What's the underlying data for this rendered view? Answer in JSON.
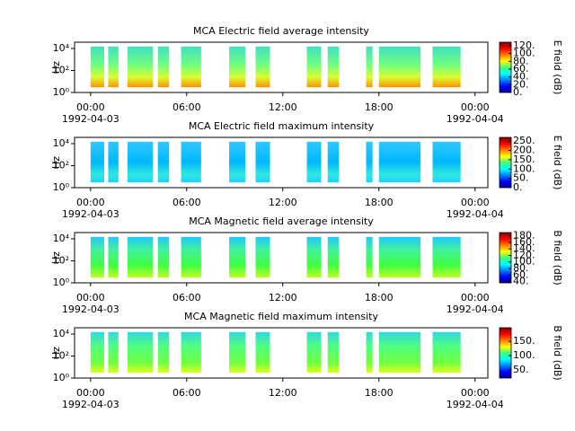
{
  "chart_data": [
    {
      "type": "spectrogram",
      "title": "MCA  Electric field average intensity",
      "ylabel": "Hz",
      "log_y": true,
      "ylim": [
        1,
        37000
      ],
      "yticks": [
        {
          "value": 1,
          "label": "10⁰"
        },
        {
          "value": 100,
          "label": "10²"
        },
        {
          "value": 10000,
          "label": "10⁴"
        }
      ],
      "xlim": [
        -1,
        24.8
      ],
      "xticks": [
        {
          "value": 0,
          "label": "00:00"
        },
        {
          "value": 6,
          "label": "06:00"
        },
        {
          "value": 12,
          "label": "12:00"
        },
        {
          "value": 18,
          "label": "18:00"
        },
        {
          "value": 24,
          "label": "00:00"
        }
      ],
      "date_labels": [
        {
          "value": 0,
          "label": "1992-04-03"
        },
        {
          "value": 24,
          "label": "1992-04-04"
        }
      ],
      "freq_range": [
        3,
        15000
      ],
      "intervals": [
        [
          0,
          0.85
        ],
        [
          1.1,
          1.74
        ],
        [
          2.3,
          3.9
        ],
        [
          4.2,
          4.9
        ],
        [
          5.65,
          6.9
        ],
        [
          8.65,
          9.66
        ],
        [
          10.3,
          11.2
        ],
        [
          13.5,
          14.4
        ],
        [
          14.8,
          15.5
        ],
        [
          17.2,
          17.6
        ],
        [
          18.0,
          20.6
        ],
        [
          21.35,
          23.1
        ]
      ],
      "colorbar": {
        "label": "E field (dB)",
        "lim": [
          0,
          129
        ],
        "ticks": [
          {
            "value": 0,
            "label": "0."
          },
          {
            "value": 20,
            "label": "20."
          },
          {
            "value": 40,
            "label": "40."
          },
          {
            "value": 60,
            "label": "60."
          },
          {
            "value": 80,
            "label": "80."
          },
          {
            "value": 100,
            "label": "100."
          },
          {
            "value": 120,
            "label": "120."
          }
        ]
      }
    },
    {
      "type": "spectrogram",
      "title": "MCA  Electric field maximum intensity",
      "ylabel": "Hz",
      "log_y": true,
      "ylim": [
        1,
        37000
      ],
      "yticks": [
        {
          "value": 1,
          "label": "10⁰"
        },
        {
          "value": 100,
          "label": "10²"
        },
        {
          "value": 10000,
          "label": "10⁴"
        }
      ],
      "xlim": [
        -1,
        24.8
      ],
      "xticks": [
        {
          "value": 0,
          "label": "00:00"
        },
        {
          "value": 6,
          "label": "06:00"
        },
        {
          "value": 12,
          "label": "12:00"
        },
        {
          "value": 18,
          "label": "18:00"
        },
        {
          "value": 24,
          "label": "00:00"
        }
      ],
      "date_labels": [
        {
          "value": 0,
          "label": "1992-04-03"
        },
        {
          "value": 24,
          "label": "1992-04-04"
        }
      ],
      "freq_range": [
        3,
        15000
      ],
      "intervals": [
        [
          0,
          0.85
        ],
        [
          1.1,
          1.74
        ],
        [
          2.3,
          3.9
        ],
        [
          4.2,
          4.9
        ],
        [
          5.65,
          6.9
        ],
        [
          8.65,
          9.66
        ],
        [
          10.3,
          11.2
        ],
        [
          13.5,
          14.4
        ],
        [
          14.8,
          15.5
        ],
        [
          17.2,
          17.6
        ],
        [
          18.0,
          20.6
        ],
        [
          21.35,
          23.1
        ]
      ],
      "colorbar": {
        "label": "E field (dB)",
        "lim": [
          0,
          270
        ],
        "ticks": [
          {
            "value": 0,
            "label": "0."
          },
          {
            "value": 50,
            "label": "50."
          },
          {
            "value": 100,
            "label": "100."
          },
          {
            "value": 150,
            "label": "150."
          },
          {
            "value": 200,
            "label": "200."
          },
          {
            "value": 250,
            "label": "250."
          }
        ]
      }
    },
    {
      "type": "spectrogram",
      "title": "MCA  Magnetic field average intensity",
      "ylabel": "Hz",
      "log_y": true,
      "ylim": [
        1,
        37000
      ],
      "yticks": [
        {
          "value": 1,
          "label": "10⁰"
        },
        {
          "value": 100,
          "label": "10²"
        },
        {
          "value": 10000,
          "label": "10⁴"
        }
      ],
      "xlim": [
        -1,
        24.8
      ],
      "xticks": [
        {
          "value": 0,
          "label": "00:00"
        },
        {
          "value": 6,
          "label": "06:00"
        },
        {
          "value": 12,
          "label": "12:00"
        },
        {
          "value": 18,
          "label": "18:00"
        },
        {
          "value": 24,
          "label": "00:00"
        }
      ],
      "date_labels": [
        {
          "value": 0,
          "label": "1992-04-03"
        },
        {
          "value": 24,
          "label": "1992-04-04"
        }
      ],
      "freq_range": [
        3,
        15000
      ],
      "intervals": [
        [
          0,
          0.85
        ],
        [
          1.1,
          1.74
        ],
        [
          2.3,
          3.9
        ],
        [
          4.2,
          4.9
        ],
        [
          5.65,
          6.9
        ],
        [
          8.65,
          9.66
        ],
        [
          10.3,
          11.2
        ],
        [
          13.5,
          14.4
        ],
        [
          14.8,
          15.5
        ],
        [
          17.2,
          17.6
        ],
        [
          18.0,
          20.6
        ],
        [
          21.35,
          23.1
        ]
      ],
      "colorbar": {
        "label": "B field (dB)",
        "lim": [
          36,
          190
        ],
        "ticks": [
          {
            "value": 40,
            "label": "40."
          },
          {
            "value": 60,
            "label": "60."
          },
          {
            "value": 80,
            "label": "80."
          },
          {
            "value": 100,
            "label": "100."
          },
          {
            "value": 120,
            "label": "120."
          },
          {
            "value": 140,
            "label": "140."
          },
          {
            "value": 160,
            "label": "160."
          },
          {
            "value": 180,
            "label": "180."
          }
        ]
      }
    },
    {
      "type": "spectrogram",
      "title": "MCA  Magnetic field maximum intensity",
      "ylabel": "Hz",
      "log_y": true,
      "ylim": [
        1,
        37000
      ],
      "yticks": [
        {
          "value": 1,
          "label": "10⁰"
        },
        {
          "value": 100,
          "label": "10²"
        },
        {
          "value": 10000,
          "label": "10⁴"
        }
      ],
      "xlim": [
        -1,
        24.8
      ],
      "xticks": [
        {
          "value": 0,
          "label": "00:00"
        },
        {
          "value": 6,
          "label": "06:00"
        },
        {
          "value": 12,
          "label": "12:00"
        },
        {
          "value": 18,
          "label": "18:00"
        },
        {
          "value": 24,
          "label": "00:00"
        }
      ],
      "date_labels": [
        {
          "value": 0,
          "label": "1992-04-03"
        },
        {
          "value": 24,
          "label": "1992-04-04"
        }
      ],
      "freq_range": [
        3,
        15000
      ],
      "intervals": [
        [
          0,
          0.85
        ],
        [
          1.1,
          1.74
        ],
        [
          2.3,
          3.9
        ],
        [
          4.2,
          4.9
        ],
        [
          5.65,
          6.9
        ],
        [
          8.65,
          9.66
        ],
        [
          10.3,
          11.2
        ],
        [
          13.5,
          14.4
        ],
        [
          14.8,
          15.5
        ],
        [
          17.2,
          17.6
        ],
        [
          18.0,
          20.6
        ],
        [
          21.35,
          23.1
        ]
      ],
      "colorbar": {
        "label": "B field (dB)",
        "lim": [
          21,
          198
        ],
        "ticks": [
          {
            "value": 50,
            "label": "50."
          },
          {
            "value": 100,
            "label": "100."
          },
          {
            "value": 150,
            "label": "150."
          }
        ]
      }
    }
  ]
}
